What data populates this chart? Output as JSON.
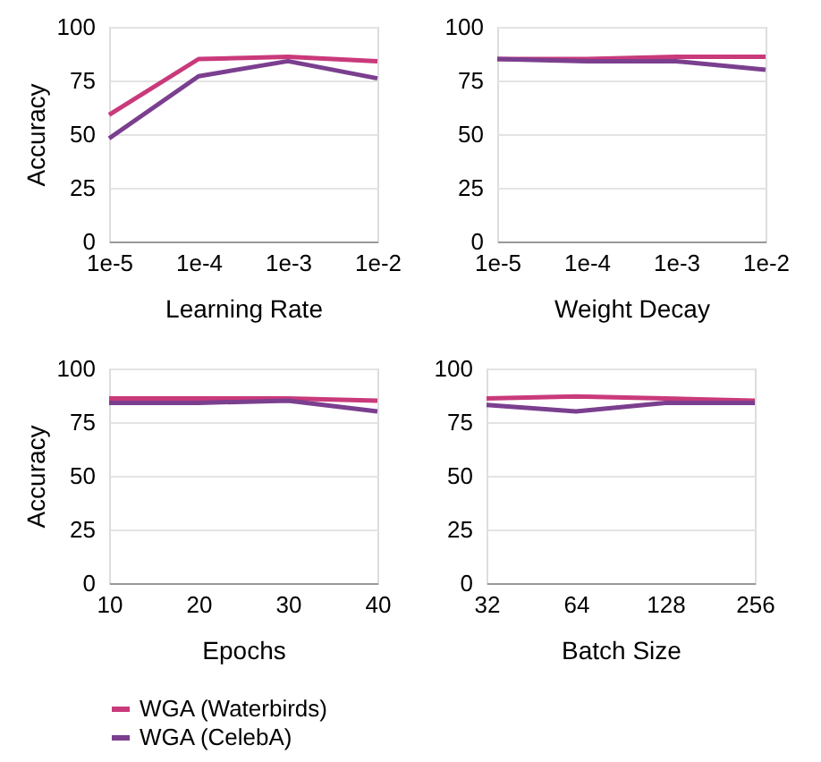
{
  "chart_data": [
    {
      "type": "line",
      "xlabel": "Learning Rate",
      "ylabel": "Accuracy",
      "categories": [
        "1e-5",
        "1e-4",
        "1e-3",
        "1e-2"
      ],
      "ylim": [
        0,
        100
      ],
      "yticks": [
        0,
        25,
        50,
        75,
        100
      ],
      "grid": "y",
      "legend": "bottom",
      "series": [
        {
          "name": "WGA (Waterbirds)",
          "color": "#c93a7b",
          "values": [
            59,
            85,
            86,
            84
          ]
        },
        {
          "name": "WGA (CelebA)",
          "color": "#7b3f8f",
          "values": [
            48,
            77,
            84,
            76
          ]
        }
      ]
    },
    {
      "type": "line",
      "xlabel": "Weight Decay",
      "categories": [
        "1e-5",
        "1e-4",
        "1e-3",
        "1e-2"
      ],
      "ylim": [
        0,
        100
      ],
      "yticks": [
        0,
        25,
        50,
        75,
        100
      ],
      "grid": "y",
      "legend": "bottom",
      "series": [
        {
          "name": "WGA (Waterbirds)",
          "color": "#c93a7b",
          "values": [
            85,
            85,
            86,
            86
          ]
        },
        {
          "name": "WGA (CelebA)",
          "color": "#7b3f8f",
          "values": [
            85,
            84,
            84,
            80
          ]
        }
      ]
    },
    {
      "type": "line",
      "xlabel": "Epochs",
      "ylabel": "Accuracy",
      "categories": [
        "10",
        "20",
        "30",
        "40"
      ],
      "ylim": [
        0,
        100
      ],
      "yticks": [
        0,
        25,
        50,
        75,
        100
      ],
      "grid": "y",
      "legend": "bottom",
      "series": [
        {
          "name": "WGA (Waterbirds)",
          "color": "#c93a7b",
          "values": [
            86,
            86,
            86,
            85
          ]
        },
        {
          "name": "WGA (CelebA)",
          "color": "#7b3f8f",
          "values": [
            84,
            84,
            85,
            80
          ]
        }
      ]
    },
    {
      "type": "line",
      "xlabel": "Batch Size",
      "categories": [
        "32",
        "64",
        "128",
        "256"
      ],
      "ylim": [
        0,
        100
      ],
      "yticks": [
        0,
        25,
        50,
        75,
        100
      ],
      "grid": "y",
      "legend": "bottom",
      "series": [
        {
          "name": "WGA (Waterbirds)",
          "color": "#c93a7b",
          "values": [
            86,
            87,
            86,
            85
          ]
        },
        {
          "name": "WGA (CelebA)",
          "color": "#7b3f8f",
          "values": [
            83,
            80,
            84,
            84
          ]
        }
      ]
    }
  ]
}
